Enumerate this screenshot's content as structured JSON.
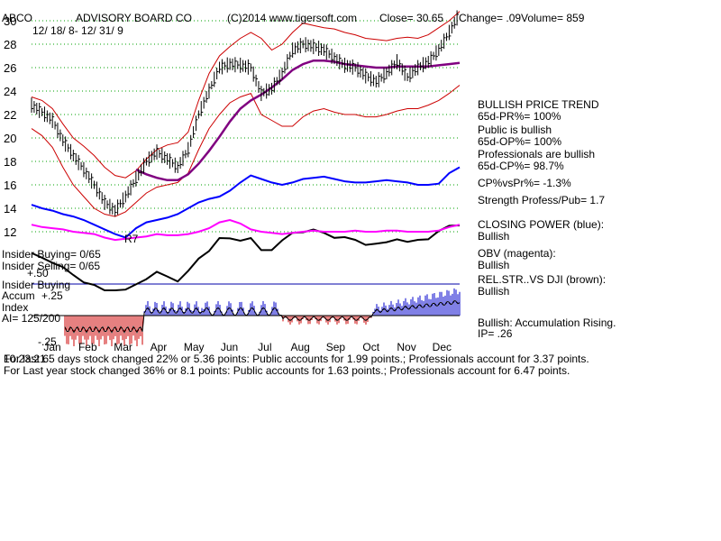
{
  "header": {
    "symbol": "ABCO",
    "company": "ADVISORY BOARD CO",
    "copyright": "(C)2014 www.tigersoft.com",
    "close": "Close=  30.65",
    "change": "Change= .09",
    "volume": "Volume= 859",
    "date_range": "12/ 18/ 8- 12/ 31/ 9"
  },
  "sidebar": {
    "trend_title": "BULLISH PRICE TREND",
    "pr": "65d-PR%= 100%",
    "public": "Public is bullish",
    "op": "65d-OP%= 100%",
    "pros": "Professionals are bullish",
    "cp": "65d-CP%= 98.7%",
    "cpvspr": "CP%vsPr%= -1.3%",
    "strength": "Strength Profess/Pub= 1.7",
    "closing_power": "CLOSING POWER (blue):",
    "closing_power_val": "Bullish",
    "obv": "OBV (magenta):",
    "obv_val": "Bullish",
    "relstr": "REL.STR..VS DJI (brown):",
    "relstr_val": "Bullish",
    "accum": "Bullish: Accumulation Rising.",
    "ip": "IP=  .26"
  },
  "left_labels": {
    "insider_buying": "Insider Buying= 0/65",
    "insider_selling": "Insider Selling= 0/65",
    "plus50": "+.50",
    "insider_buying2": "Insider Buying",
    "accum": "Accum",
    "plus25": "+.25",
    "index": "Index",
    "ai": "AI= 125/200",
    "minus25": "-.25",
    "r7": "R7",
    "time": "10:23:21"
  },
  "footer": {
    "line1": "For last 65 days stock changed  22% or  5.36 points:  Public accounts for  1.99 points.;  Professionals account for  3.37 points.",
    "line2": "For Last year stock changed  36% or  8.1 points:  Public accounts for  1.63 points.;  Professionals account for  6.47 points."
  },
  "colors": {
    "price": "#000000",
    "band": "#cc0000",
    "ma": "#800080",
    "closing_power": "#0000ff",
    "obv": "#ff00ff",
    "relstr": "#000000",
    "grid": "#00a000",
    "accum_pos": "#0000cc",
    "accum_neg": "#cc0000"
  },
  "chart_data": {
    "type": "line",
    "xlabel": "",
    "ylabel": "",
    "ylim": [
      11,
      31
    ],
    "y_ticks": [
      12,
      14,
      16,
      18,
      20,
      22,
      24,
      26,
      28,
      30
    ],
    "month_labels": [
      "Jan",
      "Feb",
      "Mar",
      "Apr",
      "May",
      "Jun",
      "Jul",
      "Aug",
      "Sep",
      "Oct",
      "Nov",
      "Dec"
    ],
    "grid": true,
    "series": [
      {
        "name": "",
        "role": "price",
        "values": [
          22.8,
          22.2,
          21.5,
          19.8,
          18.5,
          17.3,
          16.0,
          14.5,
          13.8,
          15.0,
          16.5,
          18.0,
          18.8,
          18.2,
          17.5,
          19.0,
          22.0,
          24.0,
          26.0,
          26.3,
          26.2,
          26.0,
          23.8,
          24.2,
          25.5,
          27.5,
          28.0,
          27.8,
          27.5,
          26.8,
          26.2,
          26.0,
          25.3,
          24.8,
          25.5,
          26.5,
          25.2,
          26.0,
          26.5,
          27.5,
          29.0,
          30.65
        ]
      },
      {
        "name": "",
        "role": "upper-band",
        "values": [
          23.5,
          23.2,
          22.5,
          21.2,
          20.0,
          19.3,
          18.5,
          17.5,
          16.8,
          16.6,
          17.2,
          18.2,
          19.0,
          19.4,
          19.6,
          20.5,
          23.2,
          25.5,
          27.0,
          27.8,
          28.5,
          29.0,
          28.5,
          27.5,
          28.0,
          29.0,
          29.8,
          29.6,
          29.4,
          29.3,
          29.0,
          28.8,
          28.5,
          28.4,
          28.3,
          28.5,
          28.6,
          28.5,
          28.8,
          29.4,
          30.0,
          30.8
        ]
      },
      {
        "name": "",
        "role": "lower-band",
        "values": [
          20.8,
          20.2,
          19.2,
          17.5,
          16.0,
          15.0,
          14.0,
          13.5,
          13.3,
          13.7,
          14.5,
          15.3,
          15.8,
          16.0,
          16.2,
          17.0,
          19.0,
          20.8,
          22.0,
          23.0,
          23.5,
          23.8,
          22.0,
          21.5,
          21.0,
          21.0,
          21.8,
          22.3,
          22.5,
          22.2,
          22.0,
          22.0,
          21.8,
          21.8,
          22.0,
          22.3,
          22.5,
          22.5,
          22.8,
          23.2,
          23.8,
          24.5
        ]
      },
      {
        "name": "",
        "role": "moving-average",
        "values": [
          null,
          null,
          null,
          null,
          null,
          null,
          null,
          null,
          null,
          null,
          17.3,
          16.9,
          16.6,
          16.4,
          16.4,
          16.9,
          17.8,
          18.9,
          20.1,
          21.4,
          22.5,
          23.2,
          23.7,
          24.3,
          25.0,
          25.8,
          26.3,
          26.6,
          26.6,
          26.5,
          26.3,
          26.2,
          26.1,
          26.0,
          26.0,
          26.1,
          26.1,
          26.1,
          26.1,
          26.2,
          26.3,
          26.4
        ]
      },
      {
        "name": "",
        "role": "closing-power",
        "values": [
          14.3,
          14.0,
          13.8,
          13.5,
          13.3,
          13.0,
          12.6,
          12.2,
          11.8,
          11.5,
          12.3,
          12.8,
          13.0,
          13.2,
          13.5,
          14.0,
          14.5,
          14.8,
          15.0,
          15.5,
          16.2,
          16.8,
          16.5,
          16.2,
          16.0,
          16.2,
          16.5,
          16.6,
          16.7,
          16.5,
          16.3,
          16.2,
          16.2,
          16.3,
          16.4,
          16.3,
          16.2,
          16.0,
          16.0,
          16.1,
          17.0,
          17.5
        ]
      },
      {
        "name": "",
        "role": "obv",
        "values": [
          12.6,
          12.4,
          12.3,
          12.2,
          12.0,
          11.9,
          11.8,
          11.5,
          11.3,
          11.4,
          11.5,
          11.6,
          11.8,
          11.7,
          11.7,
          11.8,
          12.0,
          12.3,
          12.8,
          13.0,
          12.7,
          12.2,
          12.0,
          11.9,
          11.8,
          11.9,
          12.0,
          12.1,
          12.0,
          12.0,
          12.0,
          12.1,
          12.0,
          12.0,
          12.1,
          12.1,
          12.0,
          12.0,
          12.0,
          12.1,
          12.4,
          12.6
        ]
      }
    ]
  }
}
